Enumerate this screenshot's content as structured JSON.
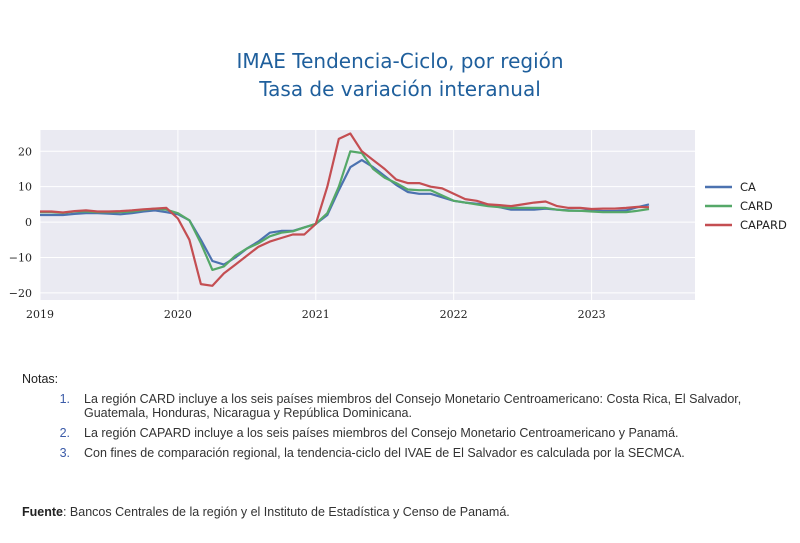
{
  "title": "IMAE Tendencia-Ciclo, por región",
  "subtitle": "Tasa de variación interanual",
  "chart_data": {
    "type": "line",
    "x": [
      "2019-01",
      "2019-02",
      "2019-03",
      "2019-04",
      "2019-05",
      "2019-06",
      "2019-07",
      "2019-08",
      "2019-09",
      "2019-10",
      "2019-11",
      "2019-12",
      "2020-01",
      "2020-02",
      "2020-03",
      "2020-04",
      "2020-05",
      "2020-06",
      "2020-07",
      "2020-08",
      "2020-09",
      "2020-10",
      "2020-11",
      "2020-12",
      "2021-01",
      "2021-02",
      "2021-03",
      "2021-04",
      "2021-05",
      "2021-06",
      "2021-07",
      "2021-08",
      "2021-09",
      "2021-10",
      "2021-11",
      "2021-12",
      "2022-01",
      "2022-02",
      "2022-03",
      "2022-04",
      "2022-05",
      "2022-06",
      "2022-07",
      "2022-08",
      "2022-09",
      "2022-10",
      "2022-11",
      "2022-12",
      "2023-01",
      "2023-02",
      "2023-03",
      "2023-04",
      "2023-05",
      "2023-06"
    ],
    "xticks": [
      "2019",
      "2020",
      "2021",
      "2022",
      "2023"
    ],
    "yticks": [
      20,
      10,
      0,
      -10,
      -20
    ],
    "ylim": [
      -22,
      26
    ],
    "grid": true,
    "legend_position": "right",
    "series": [
      {
        "name": "CA",
        "color": "#4c72b0",
        "values": [
          2.0,
          2.0,
          2.0,
          2.3,
          2.5,
          2.5,
          2.4,
          2.2,
          2.5,
          3.0,
          3.3,
          2.8,
          2.2,
          0.5,
          -5.0,
          -11.0,
          -12.0,
          -10.0,
          -7.5,
          -5.5,
          -3.0,
          -2.5,
          -2.5,
          -1.5,
          -0.5,
          2.0,
          9.0,
          15.5,
          17.5,
          15.5,
          13.0,
          10.5,
          8.5,
          8.0,
          8.0,
          7.0,
          6.0,
          5.5,
          5.2,
          4.8,
          4.2,
          3.5,
          3.5,
          3.5,
          3.8,
          3.5,
          3.3,
          3.2,
          3.3,
          3.1,
          3.1,
          3.3,
          4.2,
          5.0
        ]
      },
      {
        "name": "CARD",
        "color": "#55a868",
        "values": [
          2.8,
          2.8,
          2.6,
          3.0,
          3.0,
          2.8,
          2.8,
          2.8,
          3.0,
          3.4,
          3.8,
          3.5,
          2.5,
          0.5,
          -6.0,
          -13.5,
          -12.5,
          -9.5,
          -7.5,
          -6.0,
          -4.0,
          -3.0,
          -2.6,
          -1.5,
          -0.5,
          2.5,
          10.0,
          20.0,
          19.5,
          15.0,
          12.5,
          11.0,
          9.2,
          9.0,
          9.0,
          7.5,
          6.0,
          5.5,
          5.0,
          4.5,
          4.2,
          4.0,
          4.0,
          4.0,
          4.0,
          3.5,
          3.2,
          3.2,
          3.0,
          2.8,
          2.8,
          2.8,
          3.2,
          3.7
        ]
      },
      {
        "name": "CAPARD",
        "color": "#c44e52",
        "values": [
          3.0,
          3.0,
          2.7,
          3.1,
          3.3,
          3.0,
          3.0,
          3.1,
          3.3,
          3.6,
          3.8,
          4.0,
          1.0,
          -5.0,
          -17.5,
          -18.0,
          -14.5,
          -12.0,
          -9.5,
          -7.0,
          -5.5,
          -4.5,
          -3.5,
          -3.5,
          -0.5,
          10.0,
          23.5,
          25.0,
          20.0,
          17.5,
          15.0,
          12.0,
          11.0,
          11.0,
          10.0,
          9.5,
          8.0,
          6.5,
          6.0,
          5.0,
          4.8,
          4.5,
          5.0,
          5.5,
          5.8,
          4.5,
          4.0,
          4.0,
          3.7,
          3.8,
          3.8,
          4.0,
          4.3,
          4.2
        ]
      }
    ]
  },
  "notes": {
    "heading": "Notas:",
    "items": [
      {
        "num": "1.",
        "text": "La región CARD incluye a los seis países miembros del Consejo Monetario Centroamericano: Costa Rica, El Salvador, Guatemala, Honduras, Nicaragua y República Dominicana."
      },
      {
        "num": "2.",
        "text": "La región CAPARD incluye a los seis países miembros del Consejo Monetario Centroamericano y Panamá."
      },
      {
        "num": "3.",
        "text": "Con fines de comparación regional, la tendencia-ciclo del IVAE de El Salvador es calculada por la SECMCA."
      }
    ]
  },
  "source": {
    "label": "Fuente",
    "text": ": Bancos Centrales de la región y el Instituto de Estadística y Censo de Panamá."
  }
}
